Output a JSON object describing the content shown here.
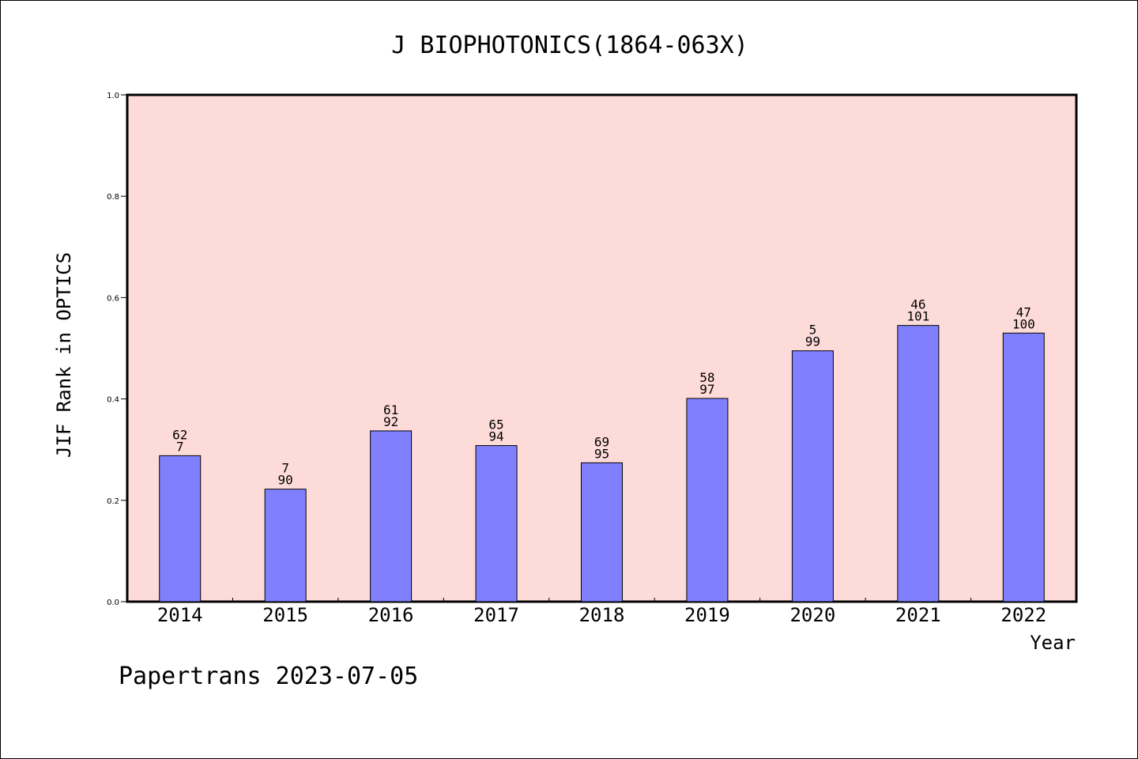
{
  "chart_data": {
    "type": "bar",
    "title": "J BIOPHOTONICS(1864-063X)",
    "xlabel": "Year",
    "ylabel": "JIF Rank in OPTICS",
    "ylim": [
      0,
      1.0
    ],
    "yticks": [
      "0.0",
      "0.2",
      "0.4",
      "0.6",
      "0.8",
      "1.0"
    ],
    "grid": false,
    "categories": [
      "2014",
      "2015",
      "2016",
      "2017",
      "2018",
      "2019",
      "2020",
      "2021",
      "2022"
    ],
    "values": [
      0.288,
      0.222,
      0.337,
      0.308,
      0.274,
      0.401,
      0.495,
      0.545,
      0.53
    ],
    "label_top": [
      "62",
      "7",
      "61",
      "65",
      "69",
      "58",
      "5",
      "46",
      "47"
    ],
    "label_bottom": [
      "7",
      "90",
      "92",
      "94",
      "95",
      "97",
      "99",
      "101",
      "100"
    ],
    "colors": {
      "plot_background": "#fddbd8",
      "bar": "#8080ff",
      "bar_edge": "#000000"
    }
  },
  "footer": {
    "text": "Papertrans 2023-07-05"
  }
}
